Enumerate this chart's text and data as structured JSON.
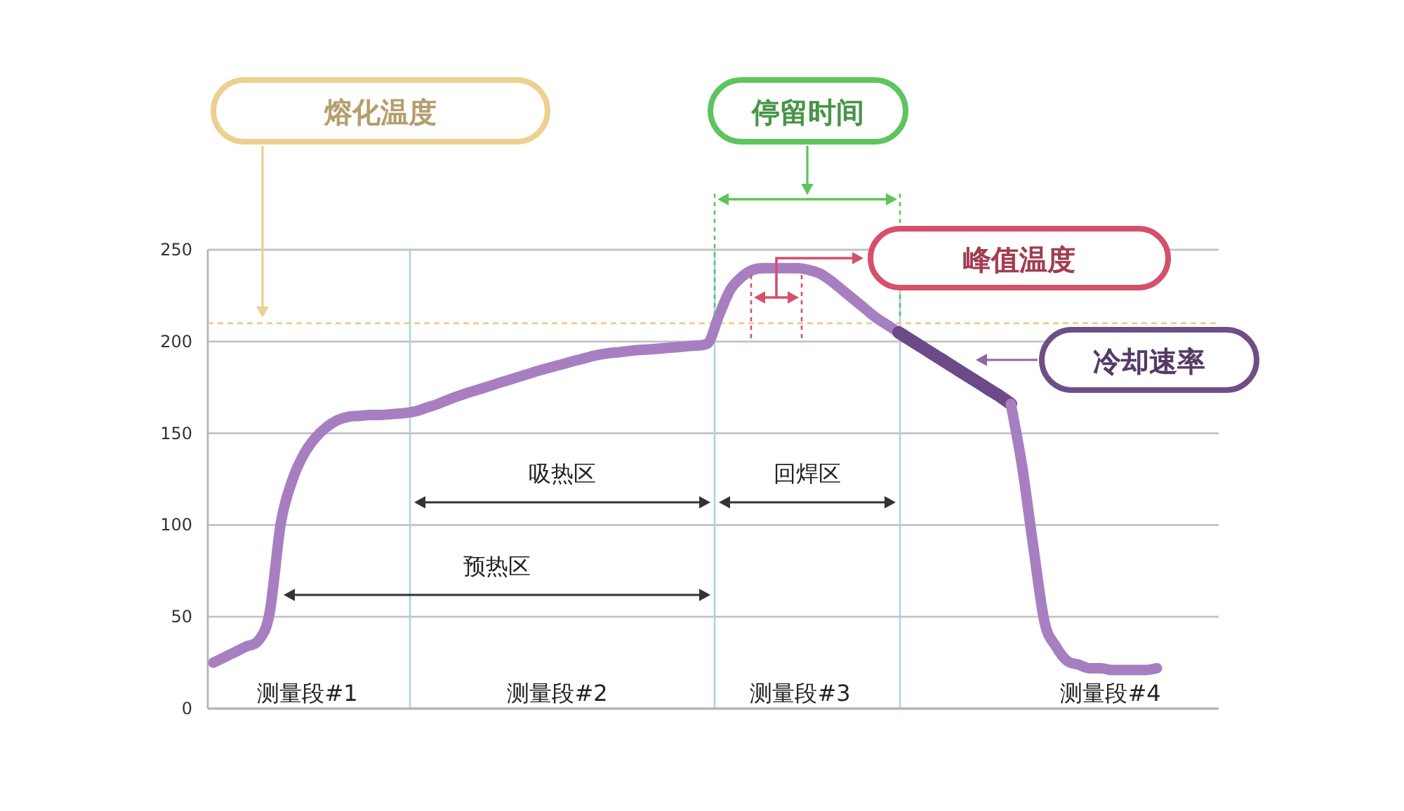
{
  "chart_data": {
    "type": "line",
    "ylim": [
      0,
      250
    ],
    "yticks": [
      0,
      50,
      100,
      150,
      200,
      250
    ],
    "grid": "y",
    "tick_labels": "y",
    "categories": [
      null,
      null,
      null,
      null,
      null,
      null,
      null,
      null,
      null,
      null,
      null,
      null,
      null,
      null,
      null,
      null,
      null,
      null,
      null,
      null,
      null,
      null,
      null,
      null,
      null,
      null,
      null,
      null,
      null,
      null,
      null,
      null,
      null,
      null,
      null,
      null,
      null,
      null,
      null,
      null,
      null,
      null,
      null,
      null,
      null,
      null,
      null,
      null,
      null,
      null,
      null,
      null,
      null,
      null,
      null,
      null,
      null,
      null,
      null,
      null,
      null,
      null,
      null,
      null,
      null,
      null,
      null,
      null,
      null,
      null,
      null,
      null,
      null,
      null,
      null,
      null,
      null,
      null,
      null,
      null,
      null,
      null,
      null,
      null,
      null,
      null,
      null,
      null,
      null,
      null
    ],
    "series": [
      {
        "color": "#a77fc1",
        "values": [
          25,
          28,
          31,
          34,
          37,
          52,
          101,
          124,
          138,
          147,
          153,
          157,
          159,
          159.5,
          160,
          160,
          160.5,
          161,
          162,
          164,
          166,
          168.5,
          170.7,
          172.7,
          174.6,
          176.6,
          178.5,
          180.4,
          182.3,
          184.2,
          185.9,
          187.5,
          189.2,
          190.8,
          192.4,
          193.5,
          194.1,
          194.8,
          195.4,
          195.8,
          196.3,
          196.8,
          197.3,
          197.8,
          199,
          214,
          228,
          235,
          239,
          240,
          240,
          240,
          240,
          239,
          237,
          233,
          228,
          223,
          218,
          213,
          209,
          205,
          null,
          null,
          null,
          null,
          null,
          null,
          null,
          null,
          null,
          null,
          null,
          null,
          null,
          null,
          null,
          null,
          null,
          null,
          null,
          null,
          null,
          null,
          null,
          null,
          null,
          null,
          null,
          null
        ]
      },
      {
        "color": "#6b4a87",
        "values": [
          null,
          null,
          null,
          null,
          null,
          null,
          null,
          null,
          null,
          null,
          null,
          null,
          null,
          null,
          null,
          null,
          null,
          null,
          null,
          null,
          null,
          null,
          null,
          null,
          null,
          null,
          null,
          null,
          null,
          null,
          null,
          null,
          null,
          null,
          null,
          null,
          null,
          null,
          null,
          null,
          null,
          null,
          null,
          null,
          null,
          null,
          null,
          null,
          null,
          null,
          null,
          null,
          null,
          null,
          null,
          null,
          null,
          null,
          null,
          null,
          null,
          205,
          201.1,
          197.3,
          193.4,
          189.6,
          185.7,
          181.8,
          178,
          174.1,
          170.3,
          166,
          null,
          null,
          null,
          null,
          null,
          null,
          null,
          null,
          null,
          null,
          null,
          null,
          null,
          null,
          null,
          null,
          null,
          null
        ]
      },
      {
        "color": "#a77fc1",
        "values": [
          null,
          null,
          null,
          null,
          null,
          null,
          null,
          null,
          null,
          null,
          null,
          null,
          null,
          null,
          null,
          null,
          null,
          null,
          null,
          null,
          null,
          null,
          null,
          null,
          null,
          null,
          null,
          null,
          null,
          null,
          null,
          null,
          null,
          null,
          null,
          null,
          null,
          null,
          null,
          null,
          null,
          null,
          null,
          null,
          null,
          null,
          null,
          null,
          null,
          null,
          null,
          null,
          null,
          null,
          null,
          null,
          null,
          null,
          null,
          null,
          null,
          null,
          null,
          null,
          null,
          null,
          null,
          null,
          null,
          null,
          null,
          166,
          132,
          88,
          47,
          34,
          26,
          24,
          22,
          22,
          21,
          21,
          21,
          21,
          22,
          null,
          null,
          null,
          null,
          null
        ]
      }
    ],
    "ref_lines": [
      {
        "axis": "y",
        "value": 210,
        "color": "#edd08f",
        "line_style": "dashed"
      }
    ],
    "annotations": [
      "熔化温度",
      "停留时间",
      "峰值温度",
      "冷却速率",
      "吸热区",
      "回焊区",
      "预热区",
      "测量段#1",
      "测量段#2",
      "测量段#3",
      "测量段#4"
    ]
  }
}
